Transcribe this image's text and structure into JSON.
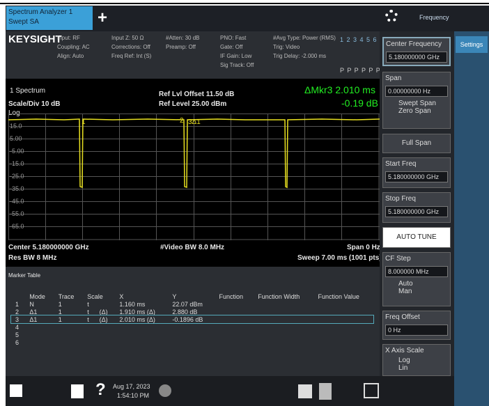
{
  "tab": {
    "title": "Spectrum Analyzer 1",
    "subtitle": "Swept SA",
    "add": "+"
  },
  "top_right": {
    "menu": "Frequency",
    "side_tab": "Settings"
  },
  "header": {
    "brand": "KEYSIGHT",
    "columns": [
      [
        "Input: RF",
        "Coupling: AC",
        "Align: Auto"
      ],
      [
        "Input Z: 50 Ω",
        "Corrections: Off",
        "Freq Ref: Int (S)"
      ],
      [
        "#Atten: 30 dB",
        "Preamp: Off"
      ],
      [
        "PNO: Fast",
        "Gate: Off",
        "IF Gain: Low",
        "Sig Track: Off"
      ],
      [
        "#Avg Type: Power (RMS)",
        "Trig: Video",
        "Trig Delay: -2.000 ms"
      ]
    ],
    "traces": "1 2 3 4 5 6",
    "detectors": "P P P P P P"
  },
  "plot": {
    "window": "1 Spectrum",
    "scale": "Scale/Div 10 dB",
    "log": "Log",
    "ref_offset": "Ref Lvl Offset 11.50 dB",
    "ref_level": "Ref Level 25.00 dBm",
    "delta_marker": "ΔMkr3  2.010 ms",
    "delta_value": "-0.19 dB",
    "y_axis_labels": [
      "15.0",
      "5.00",
      "-5.00",
      "-15.0",
      "-25.0",
      "-35.0",
      "-45.0",
      "-55.0",
      "-65.0"
    ],
    "marker_labels": [
      "1",
      "2",
      "3Δ1"
    ],
    "center": "Center 5.180000000 GHz",
    "video_bw": "#Video BW 8.0 MHz",
    "span": "Span 0 Hz",
    "res_bw": "Res BW 8 MHz",
    "sweep": "Sweep 7.00 ms (1001 pts)"
  },
  "marker_table": {
    "title": "Marker Table",
    "columns": [
      "Mode",
      "Trace",
      "Scale",
      "X",
      "Y",
      "Function",
      "Function Width",
      "Function Value"
    ],
    "rows": [
      [
        "1",
        "N",
        "1",
        "t",
        "",
        "1.160 ms",
        "22.07 dBm"
      ],
      [
        "2",
        "Δ1",
        "1",
        "t",
        "(Δ)",
        "1.910 ms (Δ)",
        "2.880 dB"
      ],
      [
        "3",
        "Δ1",
        "1",
        "t",
        "(Δ)",
        "2.010 ms (Δ)",
        "-0.1896 dB"
      ],
      [
        "4"
      ],
      [
        "5"
      ],
      [
        "6"
      ]
    ]
  },
  "softkeys": {
    "center_label": "Center Frequency",
    "center_value": "5.180000000 GHz",
    "span_label": "Span",
    "span_value": "0.00000000 Hz",
    "swept_span": "Swept Span",
    "zero_span": "Zero Span",
    "full_span": "Full Span",
    "start_label": "Start Freq",
    "start_value": "5.180000000 GHz",
    "stop_label": "Stop Freq",
    "stop_value": "5.180000000 GHz",
    "auto_tune": "AUTO TUNE",
    "cf_step_label": "CF Step",
    "cf_step_value": "8.000000 MHz",
    "auto": "Auto",
    "man": "Man",
    "offset_label": "Freq Offset",
    "offset_value": "0 Hz",
    "x_scale_label": "X Axis Scale",
    "log": "Log",
    "lin": "Lin"
  },
  "taskbar": {
    "date": "Aug 17, 2023",
    "time": "1:54:10 PM",
    "help": "?"
  }
}
